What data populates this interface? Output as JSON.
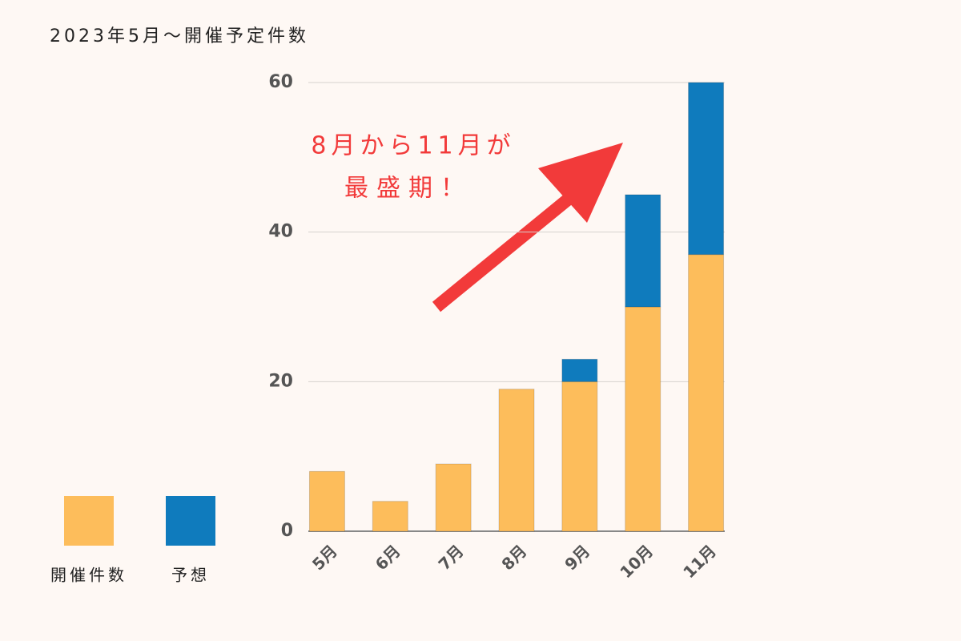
{
  "chart_data": {
    "type": "stacked_bar",
    "title": "2023年5月〜開催予定件数",
    "annotation": [
      "8月から11月が",
      "最盛期！"
    ],
    "categories": [
      "5月",
      "6月",
      "7月",
      "8月",
      "9月",
      "10月",
      "11月"
    ],
    "series": [
      {
        "name": "開催件数",
        "color": "#fdbd5b",
        "values": [
          8,
          4,
          9,
          19,
          20,
          30,
          37
        ]
      },
      {
        "name": "予想",
        "color": "#0f7bbd",
        "values": [
          0,
          0,
          0,
          0,
          3,
          15,
          23
        ]
      }
    ],
    "ylim": [
      0,
      60
    ],
    "yticks": [
      0,
      20,
      40,
      60
    ],
    "grid": true,
    "legend": "bottom-left"
  }
}
